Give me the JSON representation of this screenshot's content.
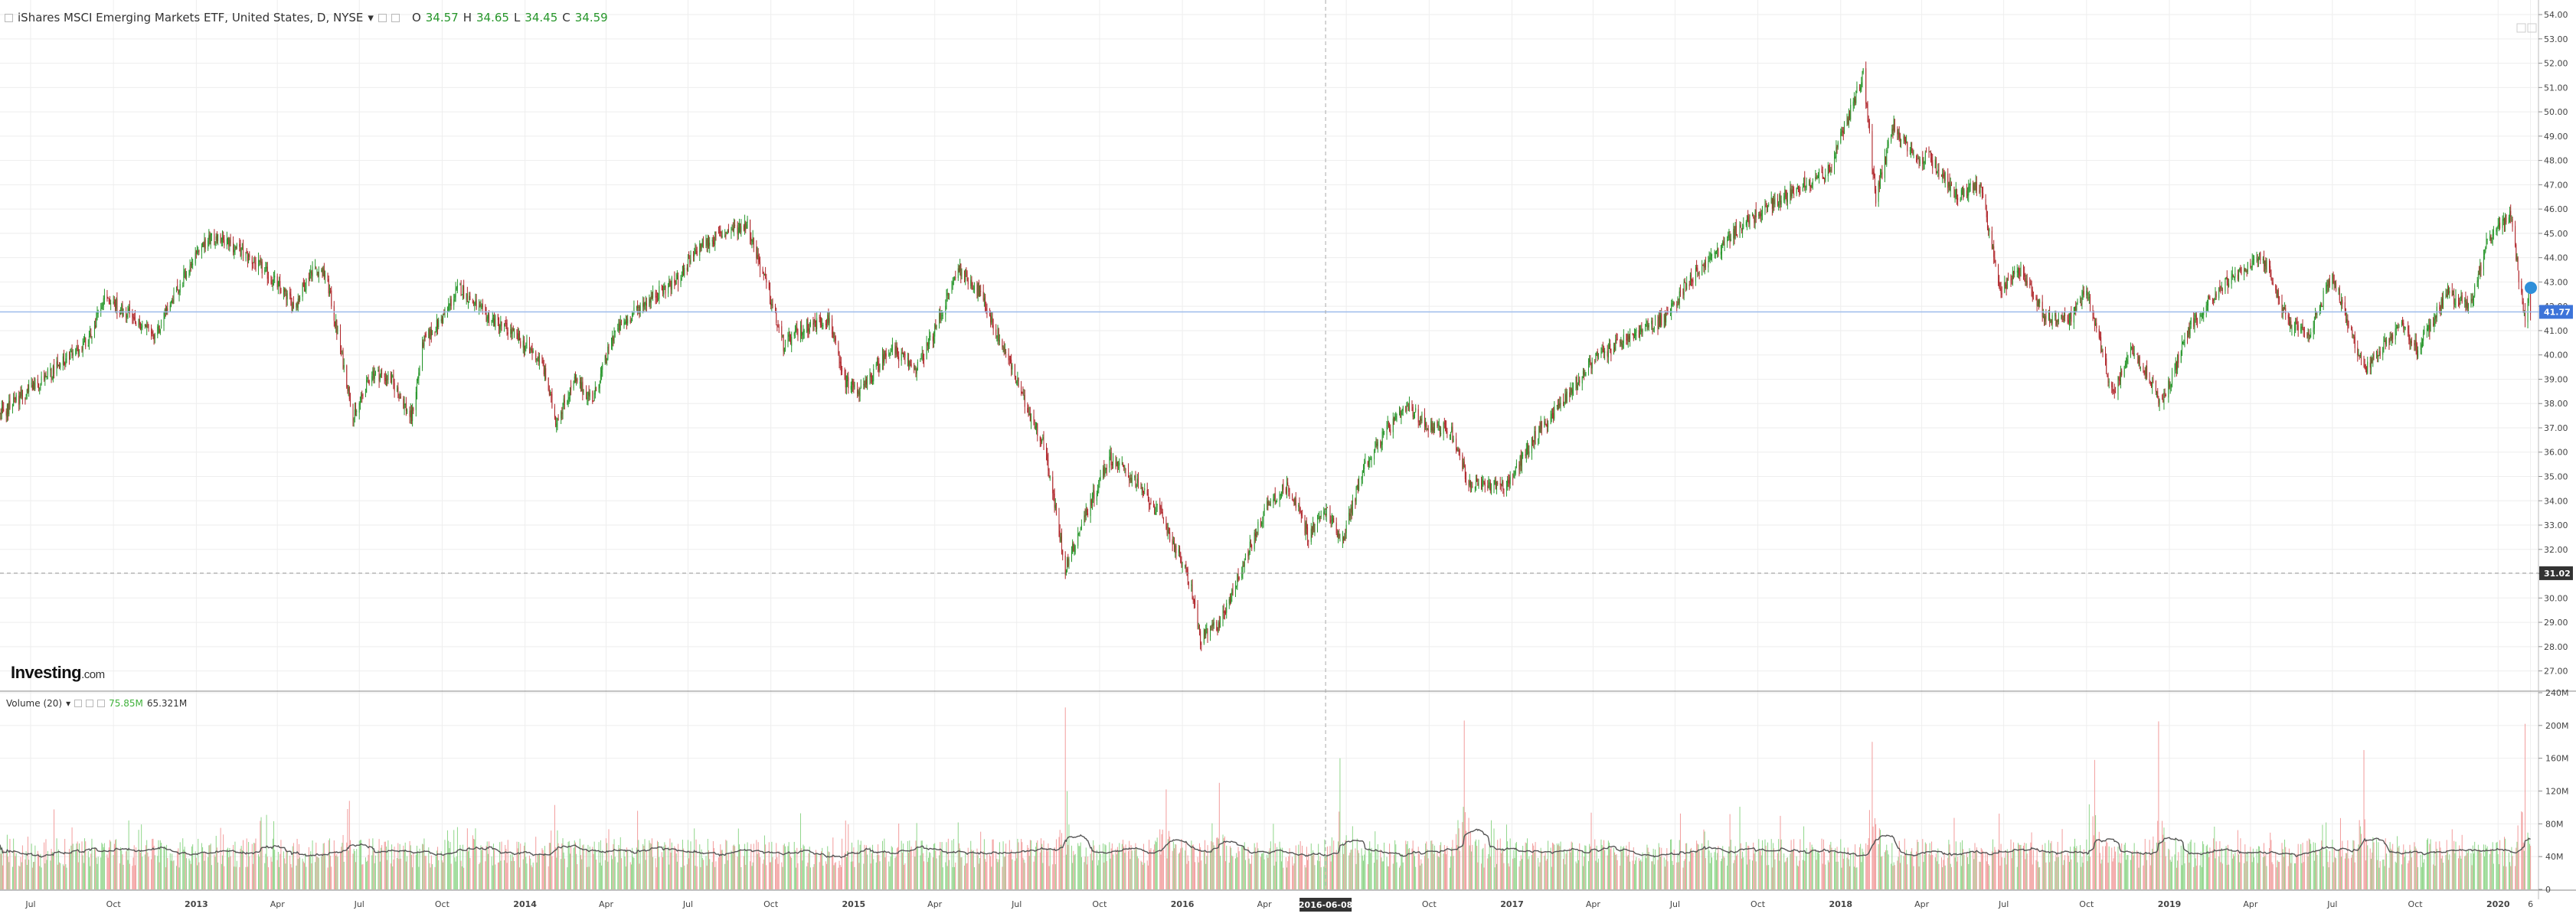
{
  "legend": {
    "title": "iShares MSCI Emerging Markets ETF, United States, D, NYSE",
    "o_label": "O",
    "o_value": "34.57",
    "h_label": "H",
    "h_value": "34.65",
    "l_label": "L",
    "l_value": "34.45",
    "c_label": "C",
    "c_value": "34.59"
  },
  "volume_legend": {
    "title": "Volume (20)",
    "value1": "75.85M",
    "value2": "65.321M"
  },
  "logo": {
    "main": "Investing",
    "suffix": ".com"
  },
  "colors": {
    "up": "#26962a",
    "down": "#b0262b",
    "vol_up": "#8fd68a",
    "vol_down": "#f29c9c",
    "ma": "#555555",
    "last_price_bg": "#3d74d9",
    "crosshair_bg": "#333333",
    "grid": "#eeeeee",
    "ref_line": "#9dbbeb"
  },
  "chart_data": [
    {
      "type": "candlestick",
      "title": "iShares MSCI Emerging Markets ETF, United States, D, NYSE",
      "y_axis": {
        "ticks": [
          "27.00",
          "28.00",
          "29.00",
          "30.00",
          "31.00",
          "32.00",
          "33.00",
          "34.00",
          "35.00",
          "36.00",
          "37.00",
          "38.00",
          "39.00",
          "40.00",
          "41.00",
          "42.00",
          "43.00",
          "44.00",
          "45.00",
          "46.00",
          "47.00",
          "48.00",
          "49.00",
          "50.00",
          "51.00",
          "52.00",
          "53.00",
          "54.00"
        ],
        "range": [
          26.2,
          54.6
        ]
      },
      "x_axis": {
        "ticks": [
          "Jul",
          "Oct",
          "2013",
          "Apr",
          "Jul",
          "Oct",
          "2014",
          "Apr",
          "Jul",
          "Oct",
          "2015",
          "Apr",
          "Jul",
          "Oct",
          "2016",
          "Apr",
          "Jul",
          "Oct",
          "2017",
          "Apr",
          "Jul",
          "Oct",
          "2018",
          "Apr",
          "Jul",
          "Oct",
          "2019",
          "Apr",
          "Jul",
          "Oct",
          "2020",
          "6"
        ],
        "tick_dates": [
          "2012-07-01",
          "2012-10-01",
          "2013-01-01",
          "2013-04-01",
          "2013-07-01",
          "2013-10-01",
          "2014-01-01",
          "2014-04-01",
          "2014-07-01",
          "2014-10-01",
          "2015-01-01",
          "2015-04-01",
          "2015-07-01",
          "2015-10-01",
          "2016-01-01",
          "2016-04-01",
          "2016-07-01",
          "2016-10-01",
          "2017-01-01",
          "2017-04-01",
          "2017-07-01",
          "2017-10-01",
          "2018-01-01",
          "2018-04-01",
          "2018-07-01",
          "2018-10-01",
          "2019-01-01",
          "2019-04-01",
          "2019-07-01",
          "2019-10-01",
          "2020-01-01",
          "2020-02-06"
        ],
        "range": [
          "2012-05-28",
          "2020-02-14"
        ],
        "crosshair_label": "2016-06-08"
      },
      "series_path": [
        {
          "x": "2012-05-28",
          "y": 37.5
        },
        {
          "x": "2012-06-20",
          "y": 38.3
        },
        {
          "x": "2012-07-15",
          "y": 39.0
        },
        {
          "x": "2012-08-10",
          "y": 39.8
        },
        {
          "x": "2012-09-05",
          "y": 40.7
        },
        {
          "x": "2012-09-20",
          "y": 42.4
        },
        {
          "x": "2012-10-20",
          "y": 41.6
        },
        {
          "x": "2012-11-15",
          "y": 40.7
        },
        {
          "x": "2012-12-10",
          "y": 42.6
        },
        {
          "x": "2013-01-05",
          "y": 44.4
        },
        {
          "x": "2013-01-25",
          "y": 44.9
        },
        {
          "x": "2013-02-25",
          "y": 44.1
        },
        {
          "x": "2013-03-25",
          "y": 43.2
        },
        {
          "x": "2013-04-20",
          "y": 42.0
        },
        {
          "x": "2013-05-10",
          "y": 43.6
        },
        {
          "x": "2013-05-25",
          "y": 43.3
        },
        {
          "x": "2013-06-25",
          "y": 37.4
        },
        {
          "x": "2013-07-15",
          "y": 39.3
        },
        {
          "x": "2013-08-05",
          "y": 39.0
        },
        {
          "x": "2013-08-28",
          "y": 37.4
        },
        {
          "x": "2013-09-10",
          "y": 40.5
        },
        {
          "x": "2013-10-01",
          "y": 41.5
        },
        {
          "x": "2013-10-20",
          "y": 42.8
        },
        {
          "x": "2013-11-15",
          "y": 41.7
        },
        {
          "x": "2013-12-15",
          "y": 41.0
        },
        {
          "x": "2014-01-20",
          "y": 39.7
        },
        {
          "x": "2014-02-04",
          "y": 37.3
        },
        {
          "x": "2014-02-25",
          "y": 38.9
        },
        {
          "x": "2014-03-18",
          "y": 38.2
        },
        {
          "x": "2014-04-10",
          "y": 40.9
        },
        {
          "x": "2014-05-15",
          "y": 42.2
        },
        {
          "x": "2014-06-20",
          "y": 43.1
        },
        {
          "x": "2014-07-15",
          "y": 44.5
        },
        {
          "x": "2014-08-10",
          "y": 45.0
        },
        {
          "x": "2014-09-05",
          "y": 45.4
        },
        {
          "x": "2014-09-28",
          "y": 42.6
        },
        {
          "x": "2014-10-15",
          "y": 40.4
        },
        {
          "x": "2014-11-10",
          "y": 41.2
        },
        {
          "x": "2014-12-05",
          "y": 41.5
        },
        {
          "x": "2014-12-20",
          "y": 39.0
        },
        {
          "x": "2015-01-10",
          "y": 38.5
        },
        {
          "x": "2015-02-10",
          "y": 40.3
        },
        {
          "x": "2015-03-12",
          "y": 39.4
        },
        {
          "x": "2015-04-01",
          "y": 41.0
        },
        {
          "x": "2015-04-28",
          "y": 43.6
        },
        {
          "x": "2015-05-20",
          "y": 42.6
        },
        {
          "x": "2015-06-20",
          "y": 40.0
        },
        {
          "x": "2015-07-10",
          "y": 38.0
        },
        {
          "x": "2015-08-01",
          "y": 36.3
        },
        {
          "x": "2015-08-24",
          "y": 31.2
        },
        {
          "x": "2015-09-15",
          "y": 33.4
        },
        {
          "x": "2015-10-12",
          "y": 35.8
        },
        {
          "x": "2015-11-05",
          "y": 35.0
        },
        {
          "x": "2015-12-10",
          "y": 33.3
        },
        {
          "x": "2016-01-10",
          "y": 30.6
        },
        {
          "x": "2016-01-21",
          "y": 28.3
        },
        {
          "x": "2016-02-12",
          "y": 29.0
        },
        {
          "x": "2016-03-10",
          "y": 31.5
        },
        {
          "x": "2016-04-05",
          "y": 33.9
        },
        {
          "x": "2016-04-28",
          "y": 34.6
        },
        {
          "x": "2016-05-20",
          "y": 32.6
        },
        {
          "x": "2016-06-08",
          "y": 33.6
        },
        {
          "x": "2016-06-27",
          "y": 32.4
        },
        {
          "x": "2016-07-20",
          "y": 35.4
        },
        {
          "x": "2016-08-15",
          "y": 36.9
        },
        {
          "x": "2016-09-07",
          "y": 37.8
        },
        {
          "x": "2016-10-01",
          "y": 37.1
        },
        {
          "x": "2016-10-25",
          "y": 36.9
        },
        {
          "x": "2016-11-15",
          "y": 34.6
        },
        {
          "x": "2016-12-28",
          "y": 34.7
        },
        {
          "x": "2017-01-25",
          "y": 36.6
        },
        {
          "x": "2017-03-01",
          "y": 38.2
        },
        {
          "x": "2017-04-01",
          "y": 39.8
        },
        {
          "x": "2017-05-10",
          "y": 40.7
        },
        {
          "x": "2017-06-20",
          "y": 41.5
        },
        {
          "x": "2017-07-15",
          "y": 43.0
        },
        {
          "x": "2017-08-15",
          "y": 44.2
        },
        {
          "x": "2017-09-10",
          "y": 45.2
        },
        {
          "x": "2017-10-15",
          "y": 46.2
        },
        {
          "x": "2017-11-20",
          "y": 47.0
        },
        {
          "x": "2017-12-20",
          "y": 47.6
        },
        {
          "x": "2018-01-26",
          "y": 51.6
        },
        {
          "x": "2018-02-09",
          "y": 46.4
        },
        {
          "x": "2018-03-01",
          "y": 49.5
        },
        {
          "x": "2018-03-23",
          "y": 48.0
        },
        {
          "x": "2018-04-10",
          "y": 48.1
        },
        {
          "x": "2018-05-10",
          "y": 46.6
        },
        {
          "x": "2018-06-05",
          "y": 47.0
        },
        {
          "x": "2018-06-28",
          "y": 42.6
        },
        {
          "x": "2018-07-20",
          "y": 43.6
        },
        {
          "x": "2018-08-15",
          "y": 41.6
        },
        {
          "x": "2018-09-10",
          "y": 41.4
        },
        {
          "x": "2018-10-01",
          "y": 42.6
        },
        {
          "x": "2018-10-30",
          "y": 38.4
        },
        {
          "x": "2018-11-20",
          "y": 40.4
        },
        {
          "x": "2018-12-24",
          "y": 38.0
        },
        {
          "x": "2019-01-25",
          "y": 41.3
        },
        {
          "x": "2019-03-01",
          "y": 42.9
        },
        {
          "x": "2019-04-15",
          "y": 44.0
        },
        {
          "x": "2019-05-13",
          "y": 41.4
        },
        {
          "x": "2019-06-03",
          "y": 40.7
        },
        {
          "x": "2019-07-01",
          "y": 43.3
        },
        {
          "x": "2019-08-05",
          "y": 39.3
        },
        {
          "x": "2019-09-05",
          "y": 40.8
        },
        {
          "x": "2019-09-15",
          "y": 41.3
        },
        {
          "x": "2019-10-03",
          "y": 40.2
        },
        {
          "x": "2019-11-05",
          "y": 42.5
        },
        {
          "x": "2019-12-01",
          "y": 42.0
        },
        {
          "x": "2019-12-20",
          "y": 44.7
        },
        {
          "x": "2020-01-15",
          "y": 45.7
        },
        {
          "x": "2020-01-31",
          "y": 41.3
        },
        {
          "x": "2020-02-05",
          "y": 42.8
        },
        {
          "x": "2020-02-06",
          "y": 41.7
        }
      ],
      "last_price": "41.77",
      "reference_line": "41.77",
      "crosshair_price": "31.02"
    },
    {
      "type": "bar",
      "title": "Volume (20)",
      "y_axis": {
        "ticks": [
          "0",
          "40M",
          "80M",
          "120M",
          "160M",
          "200M",
          "240M"
        ],
        "range": [
          0,
          240
        ]
      },
      "unit": "M",
      "baseline_M": 48,
      "moving_average_period": 20,
      "spikes": [
        {
          "x": "2013-06-20",
          "value_M": 108
        },
        {
          "x": "2014-02-03",
          "value_M": 103
        },
        {
          "x": "2015-08-24",
          "value_M": 222
        },
        {
          "x": "2015-12-14",
          "value_M": 122
        },
        {
          "x": "2016-02-11",
          "value_M": 130
        },
        {
          "x": "2016-06-24",
          "value_M": 160
        },
        {
          "x": "2016-11-09",
          "value_M": 206
        },
        {
          "x": "2018-02-05",
          "value_M": 180
        },
        {
          "x": "2018-10-10",
          "value_M": 158
        },
        {
          "x": "2018-12-20",
          "value_M": 205
        },
        {
          "x": "2019-08-05",
          "value_M": 170
        },
        {
          "x": "2020-01-31",
          "value_M": 202
        }
      ]
    }
  ]
}
